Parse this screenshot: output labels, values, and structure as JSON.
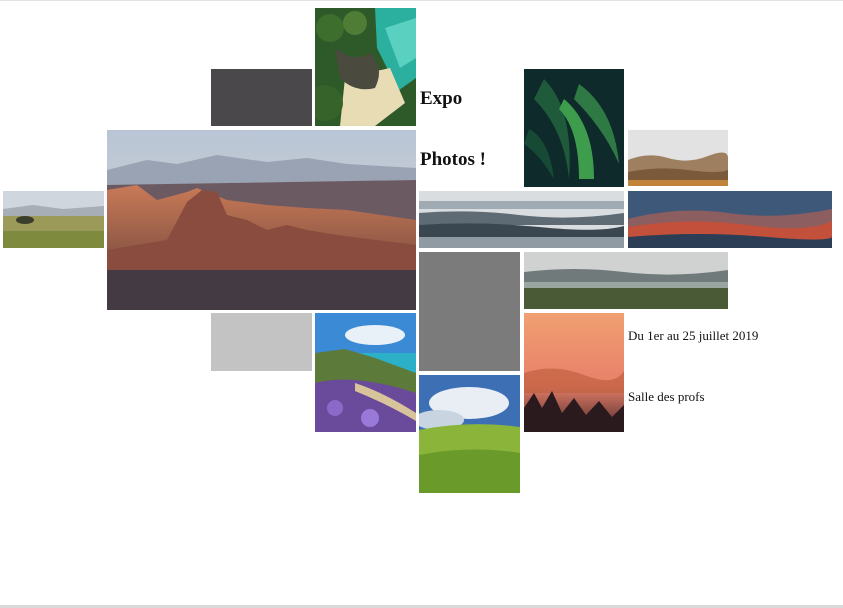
{
  "title": {
    "line1": "Expo",
    "line2": "Photos !"
  },
  "info": {
    "dates": "Du 1er au 25 juillet 2019",
    "place": "Salle des profs"
  },
  "placeholders": {
    "dark_gray": "#4a484a",
    "mid_gray": "#7b7b7b",
    "light_gray": "#c4c3c4"
  },
  "photos": [
    "coast-aerial",
    "canyon-sunset",
    "fern-leaves",
    "foggy-autumn-hills",
    "meadow-landscape",
    "motion-blur-water",
    "red-desert-hills",
    "misty-green-plain",
    "flower-coast",
    "golden-fog-forest",
    "green-field-sky"
  ]
}
